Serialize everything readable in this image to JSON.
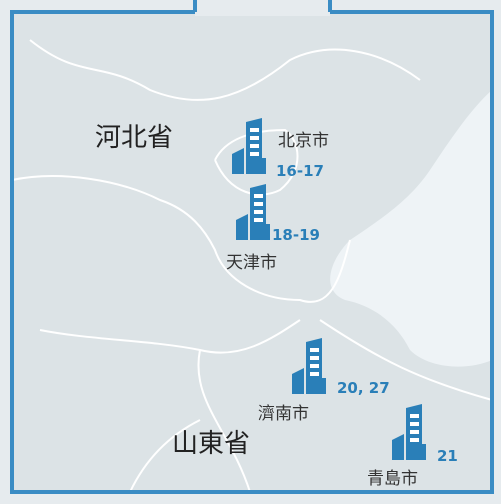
{
  "regions": [
    {
      "label": "河北省"
    },
    {
      "label": "山東省"
    }
  ],
  "cities": [
    {
      "name": "北京市",
      "label": "16-17"
    },
    {
      "name": "天津市",
      "label": "18-19"
    },
    {
      "name": "濟南市",
      "label": "20, 27"
    },
    {
      "name": "青島市",
      "label": "21"
    }
  ]
}
